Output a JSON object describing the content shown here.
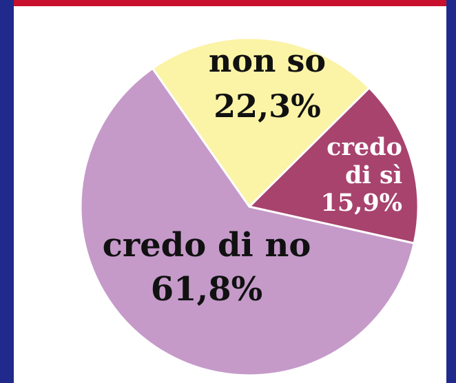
{
  "chart_data": {
    "type": "pie",
    "slices": [
      {
        "label": "non so",
        "value": 22.3,
        "value_label": "22,3%",
        "color": "#fbf3a6"
      },
      {
        "label": "credo di sì",
        "label_lines": [
          "credo",
          "di sì"
        ],
        "value": 15.9,
        "value_label": "15,9%",
        "color": "#a8436e"
      },
      {
        "label": "credo di no",
        "value": 61.8,
        "value_label": "61,8%",
        "color": "#c59ac9"
      }
    ]
  },
  "colors": {
    "frame_top": "#c8102e",
    "frame_side": "#1f2a8c",
    "slice_stroke": "#ffffff",
    "label_dark": "#111111",
    "label_light": "#ffffff"
  }
}
